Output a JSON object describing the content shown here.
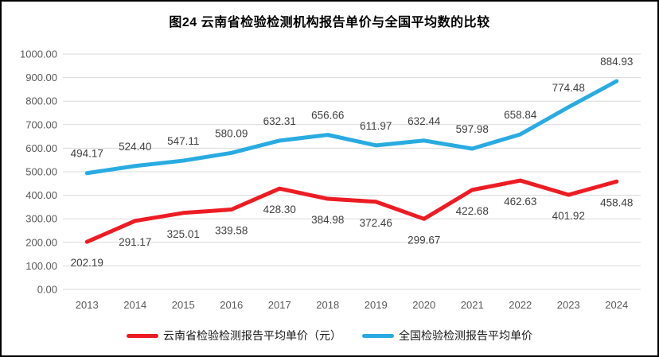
{
  "chart_data": {
    "type": "line",
    "title": "图24 云南省检验检测机构报告单价与全国平均数的比较",
    "categories": [
      "2013",
      "2014",
      "2015",
      "2016",
      "2017",
      "2018",
      "2019",
      "2020",
      "2021",
      "2022",
      "2023",
      "2024"
    ],
    "series": [
      {
        "name": "云南省检验检测报告平均单价（元）",
        "color": "#ed1c24",
        "label_position": "below",
        "values": [
          202.19,
          291.17,
          325.01,
          339.58,
          428.3,
          384.98,
          372.46,
          299.67,
          422.68,
          462.63,
          401.92,
          458.48
        ]
      },
      {
        "name": "全国检验检测报告平均单价",
        "color": "#29abe2",
        "label_position": "above",
        "values": [
          494.17,
          524.4,
          547.11,
          580.09,
          632.31,
          656.66,
          611.97,
          632.44,
          597.98,
          658.84,
          774.48,
          884.93
        ]
      }
    ],
    "ylim": [
      0,
      1000
    ],
    "y_tick_step": 100,
    "y_tick_format_decimals": 2,
    "grid": true,
    "legend_position": "bottom"
  },
  "style": {
    "gridline_color": "#d9d9d9",
    "axis_text_color": "#595959",
    "data_label_color": "#404040",
    "line_width": 5
  }
}
